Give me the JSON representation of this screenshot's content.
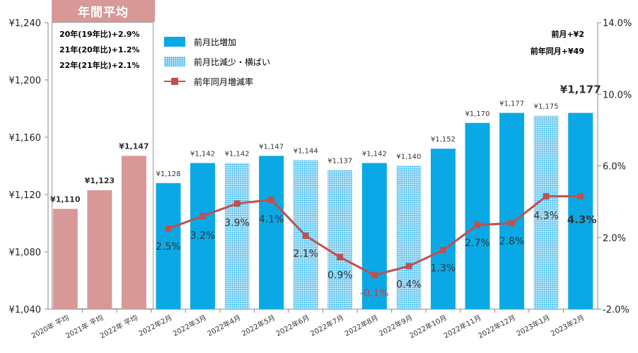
{
  "annual_box": {
    "title": "年間平均",
    "notes": [
      "20年(19年比)+2.9%",
      "21年(20年比)+1.2%",
      "22年(21年比)+2.1%"
    ]
  },
  "legend": {
    "increase": "前月比増加",
    "decrease": "前月比減少・横ばい",
    "yoy": "前年同月増減率"
  },
  "summary": {
    "mom": "前月+¥2",
    "yoy": "前年同月+¥49"
  },
  "colors": {
    "annual": "#d89898",
    "increase": "#0aa9e6",
    "decrease_bg": "#bfe6f9",
    "decrease_dot": "#17a8e3",
    "line": "#c0504d",
    "negative_label": "#e03030"
  },
  "chart_data": {
    "type": "bar+line",
    "categories": [
      "2020年 平均",
      "2021年 平均",
      "2022年 平均",
      "2022年2月",
      "2022年3月",
      "2022年4月",
      "2022年5月",
      "2022年6月",
      "2022年7月",
      "2022年8月",
      "2022年9月",
      "2022年10月",
      "2022年11月",
      "2022年12月",
      "2023年1月",
      "2023年2月"
    ],
    "bars": {
      "values": [
        1110,
        1123,
        1147,
        1128,
        1142,
        1142,
        1147,
        1144,
        1137,
        1142,
        1140,
        1152,
        1170,
        1177,
        1175,
        1177
      ],
      "labels": [
        "¥1,110",
        "¥1,123",
        "¥1,147",
        "¥1,128",
        "¥1,142",
        "¥1,142",
        "¥1,147",
        "¥1,144",
        "¥1,137",
        "¥1,142",
        "¥1,140",
        "¥1,152",
        "¥1,170",
        "¥1,177",
        "¥1,175",
        "¥1,177"
      ],
      "kind": [
        "annual",
        "annual",
        "annual",
        "increase",
        "increase",
        "decrease",
        "increase",
        "decrease",
        "decrease",
        "increase",
        "decrease",
        "increase",
        "increase",
        "increase",
        "decrease",
        "increase"
      ]
    },
    "line": {
      "name": "前年同月増減率",
      "x_start_index": 3,
      "values": [
        2.5,
        3.2,
        3.9,
        4.1,
        2.1,
        0.9,
        -0.1,
        0.4,
        1.3,
        2.7,
        2.8,
        4.3,
        4.3
      ],
      "labels": [
        "2.5%",
        "3.2%",
        "3.9%",
        "4.1%",
        "2.1%",
        "0.9%",
        "-0.1%",
        "0.4%",
        "1.3%",
        "2.7%",
        "2.8%",
        "4.3%",
        "4.3%"
      ]
    },
    "y_left": {
      "min": 1040,
      "max": 1240,
      "ticks": [
        1040,
        1080,
        1120,
        1160,
        1200,
        1240
      ],
      "tick_labels": [
        "¥1,040",
        "¥1,080",
        "¥1,120",
        "¥1,160",
        "¥1,200",
        "¥1,240"
      ]
    },
    "y_right": {
      "min": -2.0,
      "max": 14.0,
      "ticks": [
        -2,
        2,
        6,
        10,
        14
      ],
      "tick_labels": [
        "-2.0%",
        "2.0%",
        "6.0%",
        "10.0%",
        "14.0%"
      ]
    },
    "grid": false
  }
}
